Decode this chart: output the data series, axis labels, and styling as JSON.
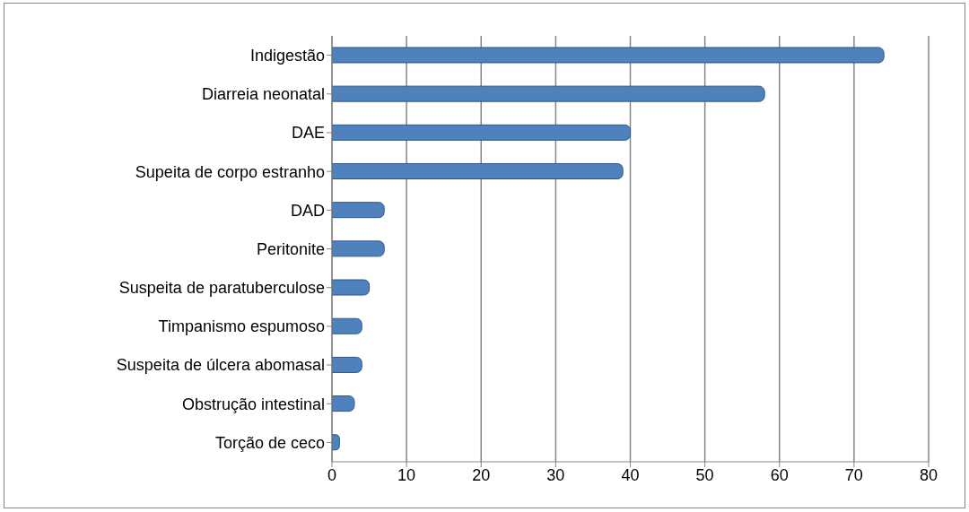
{
  "chart_data": {
    "type": "bar",
    "orientation": "horizontal",
    "categories": [
      "Indigestão",
      "Diarreia neonatal",
      "DAE",
      "Supeita de corpo estranho",
      "DAD",
      "Peritonite",
      "Suspeita de paratuberculose",
      "Timpanismo espumoso",
      "Suspeita de úlcera abomasal",
      "Obstrução intestinal",
      "Torção de ceco"
    ],
    "values": [
      74,
      58,
      40,
      39,
      7,
      7,
      5,
      4,
      4,
      3,
      1
    ],
    "color": "#4f81bd",
    "xlim": [
      0,
      80
    ],
    "xticks": [
      0,
      10,
      20,
      30,
      40,
      50,
      60,
      70,
      80
    ],
    "grid": "x"
  }
}
